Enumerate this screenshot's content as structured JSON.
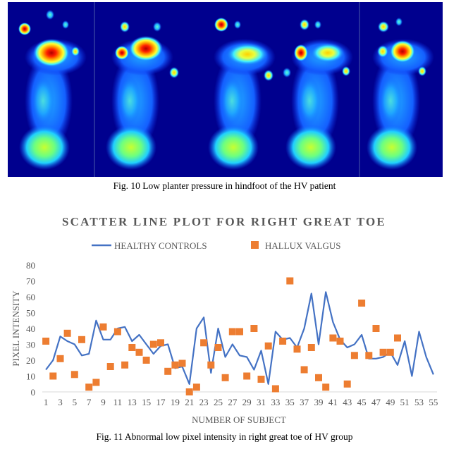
{
  "figure10": {
    "caption": "Fig. 10 Low planter pressure in hindfoot of the HV patient",
    "panels": 5,
    "colormap": "jet"
  },
  "figure11": {
    "caption": "Fig. 11 Abnormal low pixel intensity in right great toe of HV group"
  },
  "chart_data": {
    "type": "line",
    "title": "SCATTER LINE PLOT FOR RIGHT GREAT TOE",
    "xlabel": "NUMBER OF SUBJECT",
    "ylabel": "PIXEL INTENSITY",
    "ylim": [
      0,
      80
    ],
    "yticks": [
      0,
      10,
      20,
      30,
      40,
      50,
      60,
      70,
      80
    ],
    "xticks": [
      1,
      3,
      5,
      7,
      9,
      11,
      13,
      15,
      17,
      19,
      21,
      23,
      25,
      27,
      29,
      31,
      33,
      35,
      37,
      39,
      41,
      43,
      45,
      47,
      49,
      51,
      53,
      55
    ],
    "grid": false,
    "legend_position": "top",
    "series": [
      {
        "name": "HEALTHY CONTROLS",
        "style": "line",
        "color": "#4472C4",
        "x": [
          1,
          2,
          3,
          4,
          5,
          6,
          7,
          8,
          9,
          10,
          11,
          12,
          13,
          14,
          15,
          16,
          17,
          18,
          19,
          20,
          21,
          22,
          23,
          24,
          25,
          26,
          27,
          28,
          29,
          30,
          31,
          32,
          33,
          34,
          35,
          36,
          37,
          38,
          39,
          40,
          41,
          42,
          43,
          44,
          45,
          46,
          47,
          48,
          49,
          50,
          51,
          52,
          53,
          54,
          55
        ],
        "values": [
          14,
          20,
          35,
          32,
          30,
          23,
          24,
          45,
          33,
          33,
          40,
          41,
          32,
          36,
          30,
          24,
          29,
          30,
          15,
          16,
          5,
          40,
          47,
          12,
          40,
          22,
          30,
          23,
          22,
          14,
          26,
          5,
          38,
          33,
          34,
          28,
          40,
          62,
          30,
          63,
          44,
          33,
          28,
          30,
          36,
          21,
          21,
          22,
          25,
          17,
          32,
          10,
          38,
          22,
          11
        ]
      },
      {
        "name": "HALLUX VALGUS",
        "style": "scatter",
        "color": "#ED7D31",
        "x": [
          1,
          2,
          3,
          4,
          5,
          6,
          7,
          8,
          9,
          10,
          11,
          12,
          13,
          14,
          15,
          16,
          17,
          18,
          19,
          20,
          21,
          22,
          23,
          24,
          25,
          26,
          27,
          28,
          29,
          30,
          31,
          32,
          33,
          34,
          35,
          36,
          37,
          38,
          39,
          40,
          41,
          42,
          43,
          44,
          45,
          46,
          47,
          48,
          49,
          50
        ],
        "values": [
          32,
          10,
          21,
          37,
          11,
          33,
          3,
          6,
          41,
          16,
          38,
          17,
          28,
          25,
          20,
          30,
          31,
          13,
          17,
          18,
          0,
          3,
          31,
          17,
          28,
          9,
          38,
          38,
          10,
          40,
          8,
          29,
          2,
          32,
          70,
          27,
          14,
          28,
          9,
          3,
          34,
          32,
          5,
          23,
          56,
          23,
          40,
          25,
          25,
          34
        ]
      }
    ]
  }
}
